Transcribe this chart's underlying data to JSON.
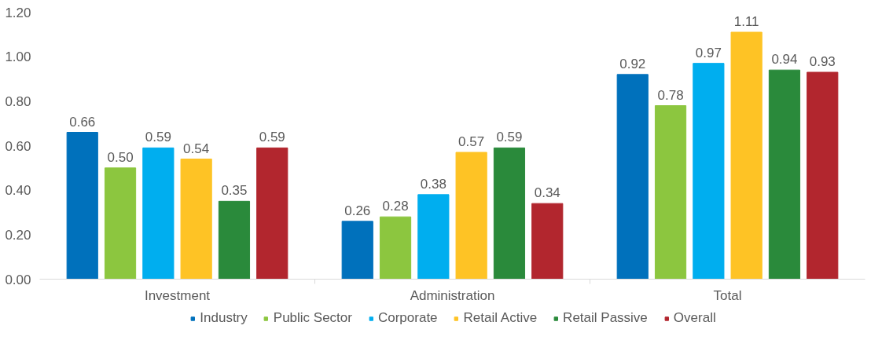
{
  "chart_data": {
    "type": "bar",
    "categories": [
      "Investment",
      "Administration",
      "Total"
    ],
    "series": [
      {
        "name": "Industry",
        "color": "#0071bc",
        "values": [
          0.66,
          0.26,
          0.92
        ],
        "value_labels": [
          "0.66",
          "0.26",
          "0.92"
        ]
      },
      {
        "name": "Public Sector",
        "color": "#8cc63f",
        "values": [
          0.5,
          0.28,
          0.78
        ],
        "value_labels": [
          "0.50",
          "0.28",
          "0.78"
        ]
      },
      {
        "name": "Corporate",
        "color": "#00aeef",
        "values": [
          0.59,
          0.38,
          0.97
        ],
        "value_labels": [
          "0.59",
          "0.38",
          "0.97"
        ]
      },
      {
        "name": "Retail Active",
        "color": "#fec325",
        "values": [
          0.54,
          0.57,
          1.11
        ],
        "value_labels": [
          "0.54",
          "0.57",
          "1.11"
        ]
      },
      {
        "name": "Retail Passive",
        "color": "#2a8a3b",
        "values": [
          0.35,
          0.59,
          0.94
        ],
        "value_labels": [
          "0.35",
          "0.59",
          "0.94"
        ]
      },
      {
        "name": "Overall",
        "color": "#b2262e",
        "values": [
          0.59,
          0.34,
          0.93
        ],
        "value_labels": [
          "0.59",
          "0.34",
          "0.93"
        ]
      }
    ],
    "ylim": [
      0,
      1.2
    ],
    "yticks": [
      {
        "value": 0,
        "label": "0.00"
      },
      {
        "value": 0.2,
        "label": "0.20"
      },
      {
        "value": 0.4,
        "label": "0.40"
      },
      {
        "value": 0.6,
        "label": "0.60"
      },
      {
        "value": 0.8,
        "label": "0.80"
      },
      {
        "value": 1.0,
        "label": "1.00"
      },
      {
        "value": 1.2,
        "label": "1.20"
      }
    ],
    "grid": false,
    "legend": "bottom"
  }
}
